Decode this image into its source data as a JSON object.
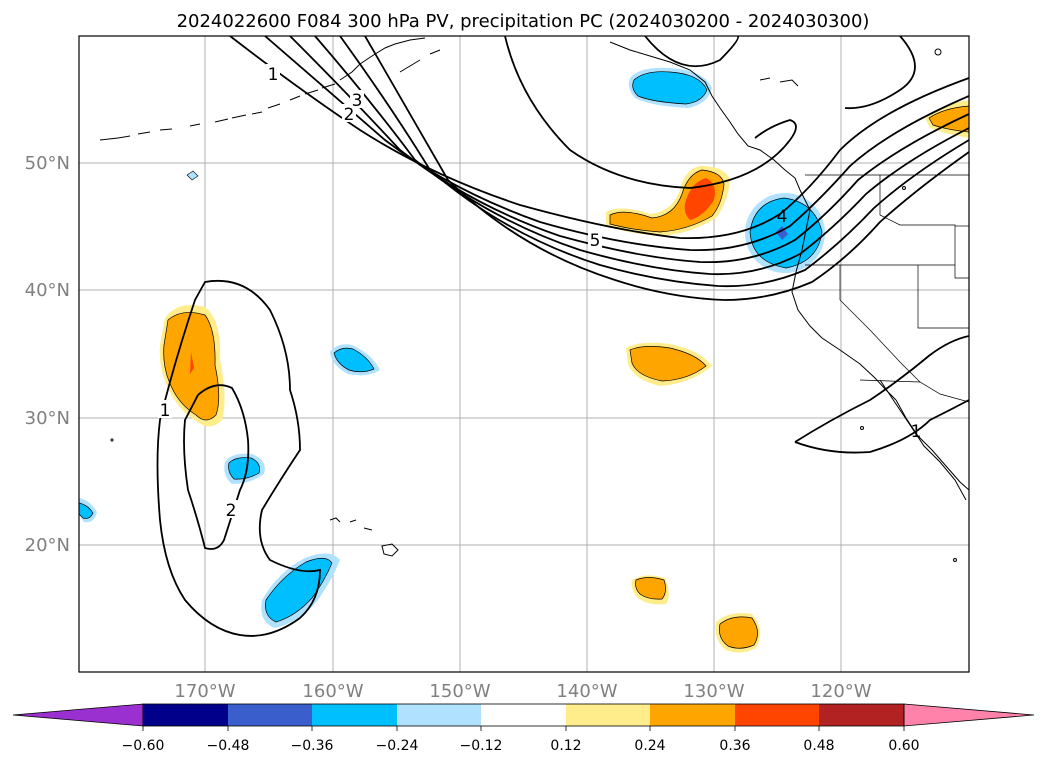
{
  "title": "2024022600 F084 300 hPa PV, precipitation PC (2024030200 - 2024030300)",
  "map": {
    "lat_labels": [
      "50°N",
      "40°N",
      "30°N",
      "20°N"
    ],
    "lon_labels": [
      "170°W",
      "160°W",
      "150°W",
      "140°W",
      "130°W",
      "120°W"
    ],
    "contour_labels": [
      "1",
      "2",
      "3",
      "5",
      "1",
      "2",
      "4",
      "1"
    ]
  },
  "colorbar": {
    "ticks": [
      "−0.60",
      "−0.48",
      "−0.36",
      "−0.24",
      "−0.12",
      "0.12",
      "0.24",
      "0.36",
      "0.48",
      "0.60"
    ],
    "colors": {
      "under": "#9b30d0",
      "c1": "#00008b",
      "c2": "#3a5fcd",
      "c3": "#00bfff",
      "c4": "#b0e2ff",
      "c5": "#ffffff",
      "c6": "#ffec8b",
      "c7": "#ffa500",
      "c8": "#ff4500",
      "c9": "#b22222",
      "over": "#ff82ab"
    }
  }
}
